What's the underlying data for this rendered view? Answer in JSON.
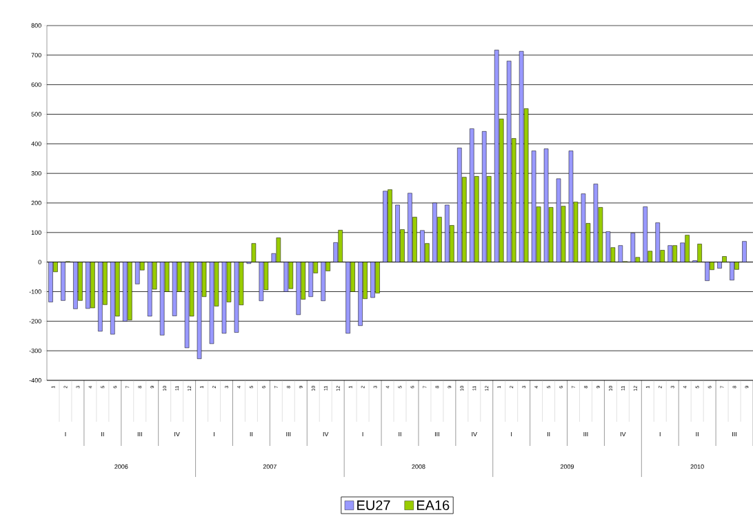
{
  "chart_data": {
    "type": "bar",
    "categories": [
      "1",
      "2",
      "3",
      "4",
      "5",
      "6",
      "7",
      "8",
      "9",
      "10",
      "11",
      "12",
      "1",
      "2",
      "3",
      "4",
      "5",
      "6",
      "7",
      "8",
      "9",
      "10",
      "11",
      "12",
      "1",
      "2",
      "3",
      "4",
      "5",
      "6",
      "7",
      "8",
      "9",
      "10",
      "11",
      "12",
      "1",
      "2",
      "3",
      "4",
      "5",
      "6",
      "7",
      "8",
      "9",
      "10",
      "11",
      "12",
      "1",
      "2",
      "3",
      "4",
      "5",
      "6",
      "7",
      "8",
      "9"
    ],
    "series": [
      {
        "name": "EU27",
        "color": "#9999ff",
        "values": [
          -135,
          -130,
          -158,
          -157,
          -234,
          -244,
          -200,
          -74,
          -183,
          -247,
          -182,
          -290,
          -327,
          -276,
          -241,
          -238,
          -5,
          -131,
          29,
          -100,
          -178,
          -117,
          -131,
          66,
          -241,
          -215,
          -120,
          240,
          193,
          233,
          107,
          200,
          193,
          386,
          451,
          442,
          717,
          680,
          713,
          376,
          383,
          282,
          376,
          231,
          264,
          103,
          56,
          98,
          187,
          133,
          56,
          65,
          5,
          -63,
          -21,
          -61,
          70
        ]
      },
      {
        "name": "EA16",
        "color": "#99cc00",
        "values": [
          -33,
          2,
          -130,
          -155,
          -144,
          -183,
          -196,
          -27,
          -92,
          -100,
          -100,
          -183,
          -117,
          -149,
          -135,
          -145,
          63,
          -94,
          82,
          -90,
          -126,
          -37,
          -30,
          108,
          -100,
          -124,
          -105,
          245,
          110,
          152,
          63,
          152,
          124,
          287,
          290,
          290,
          484,
          418,
          519,
          187,
          185,
          189,
          203,
          131,
          185,
          49,
          2,
          16,
          37,
          40,
          56,
          91,
          61,
          -26,
          19,
          -25,
          null
        ]
      }
    ],
    "ylim": [
      -400,
      800
    ],
    "yticks": [
      -400,
      -300,
      -200,
      -100,
      0,
      100,
      200,
      300,
      400,
      500,
      600,
      700,
      800
    ],
    "grid": "y",
    "legend": "bottom",
    "annotations": [
      "I",
      "II",
      "III",
      "IV",
      "I",
      "II",
      "III",
      "IV",
      "I",
      "II",
      "III",
      "IV",
      "I",
      "II",
      "III",
      "IV",
      "I",
      "II",
      "III",
      "2006",
      "2007",
      "2008",
      "2009",
      "2010"
    ]
  }
}
